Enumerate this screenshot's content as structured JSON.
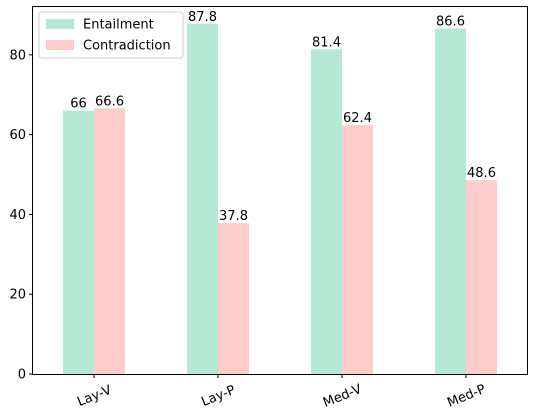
{
  "chart_data": {
    "type": "bar",
    "categories": [
      "Lay-V",
      "Lay-P",
      "Med-V",
      "Med-P"
    ],
    "series": [
      {
        "name": "Entailment",
        "values": [
          66,
          87.8,
          81.4,
          86.6
        ],
        "color": "#b5e8d5"
      },
      {
        "name": "Contradiction",
        "values": [
          66.6,
          37.8,
          62.4,
          48.6
        ],
        "color": "#ffcccc"
      }
    ],
    "data_labels": [
      [
        "66",
        "87.8",
        "81.4",
        "86.6"
      ],
      [
        "66.6",
        "37.8",
        "62.4",
        "48.6"
      ]
    ],
    "title": "",
    "xlabel": "",
    "ylabel": "",
    "ylim": [
      0,
      92
    ],
    "yticks": [
      0,
      20,
      40,
      60,
      80
    ],
    "legend_position": "top-left",
    "grid": false,
    "x_tick_rotation": "rotated"
  }
}
